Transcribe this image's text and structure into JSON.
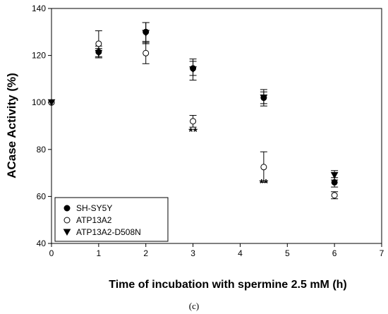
{
  "chart_data": {
    "type": "scatter",
    "xlabel": "Time of incubation with spermine 2.5 mM (h)",
    "ylabel": "ACase Activity (%)",
    "xlim": [
      0,
      7
    ],
    "ylim": [
      40,
      140
    ],
    "xticks": [
      "0",
      "1",
      "2",
      "3",
      "4",
      "5",
      "6",
      "7"
    ],
    "yticks": [
      "40",
      "60",
      "80",
      "100",
      "120",
      "140"
    ],
    "grid": false,
    "legend_position": "bottom-left",
    "series": [
      {
        "name": "SH-SY5Y",
        "marker": "filled-circle",
        "points": [
          {
            "x": 0,
            "y": 100,
            "err": 0
          },
          {
            "x": 1,
            "y": 121.5,
            "err": 2.5
          },
          {
            "x": 2,
            "y": 130,
            "err": 4
          },
          {
            "x": 3,
            "y": 114.5,
            "err": 3
          },
          {
            "x": 4.5,
            "y": 102,
            "err": 2.5
          },
          {
            "x": 6,
            "y": 66,
            "err": 2
          }
        ]
      },
      {
        "name": "ATP13A2",
        "marker": "open-circle",
        "points": [
          {
            "x": 0,
            "y": 100,
            "err": 0
          },
          {
            "x": 1,
            "y": 125,
            "err": 5.5
          },
          {
            "x": 2,
            "y": 121,
            "err": 4.5
          },
          {
            "x": 3,
            "y": 92,
            "err": 2.5
          },
          {
            "x": 4.5,
            "y": 72.5,
            "err": 6.5
          },
          {
            "x": 6,
            "y": 60.5,
            "err": 1.5
          }
        ]
      },
      {
        "name": "ATP13A2-D508N",
        "marker": "filled-triangle-down",
        "points": [
          {
            "x": 0,
            "y": 100,
            "err": 0
          },
          {
            "x": 1,
            "y": 121,
            "err": 2
          },
          {
            "x": 2,
            "y": 129.5,
            "err": 4.5
          },
          {
            "x": 3,
            "y": 114,
            "err": 4.5
          },
          {
            "x": 4.5,
            "y": 102,
            "err": 3.5
          },
          {
            "x": 6,
            "y": 69,
            "err": 2
          }
        ]
      }
    ],
    "annotations": [
      {
        "text": "**",
        "x": 3,
        "y": 86
      },
      {
        "text": "**",
        "x": 4.5,
        "y": 64
      }
    ]
  },
  "caption": "(c)"
}
